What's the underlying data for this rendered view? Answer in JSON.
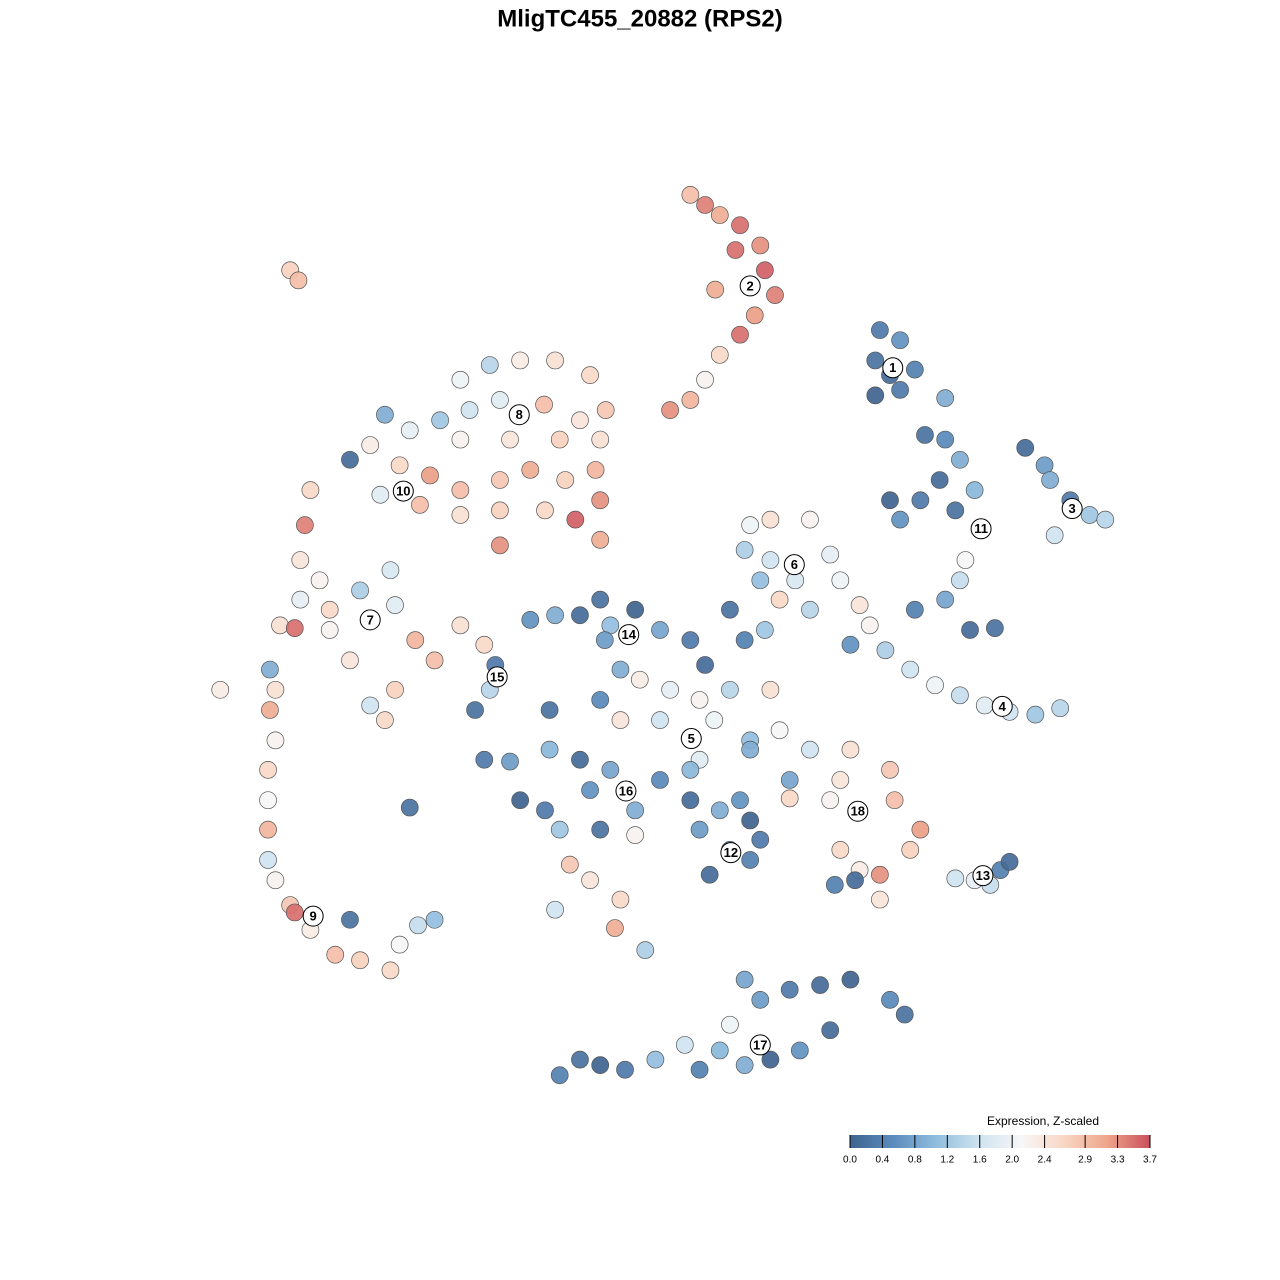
{
  "chart_data": {
    "type": "scatter",
    "title": "MligTC455_20882 (RPS2)",
    "xlim": [
      0,
      100
    ],
    "ylim": [
      0,
      100
    ],
    "x": [
      53.3,
      54.9,
      56.5,
      58.7,
      60.9,
      61.4,
      62.5,
      60.3,
      58.7,
      56.5,
      54.9,
      53.3,
      51.1,
      56.0,
      58.2,
      73.9,
      76.1,
      73.4,
      75.0,
      77.7,
      73.4,
      76.1,
      81.0,
      78.8,
      81.0,
      82.6,
      80.4,
      78.3,
      75.0,
      76.1,
      82.1,
      84.2,
      83.2,
      82.6,
      81.0,
      77.7,
      83.7,
      86.4,
      89.7,
      91.8,
      92.4,
      94.6,
      96.7,
      98.4,
      92.9,
      59.8,
      62.0,
      66.3,
      59.2,
      62.0,
      68.5,
      60.9,
      64.7,
      69.6,
      63.0,
      66.3,
      57.6,
      61.4,
      59.2,
      71.7,
      72.8,
      74.5,
      77.2,
      79.9,
      82.6,
      85.3,
      88.0,
      90.8,
      93.5,
      70.7,
      28.3,
      31.5,
      34.8,
      38.6,
      42.4,
      44.1,
      41.3,
      37.4,
      32.6,
      29.3,
      26.1,
      22.8,
      20.1,
      18.5,
      16.3,
      28.3,
      33.7,
      39.1,
      43.5,
      21.7,
      25.0,
      28.3,
      32.6,
      35.9,
      39.7,
      43.0,
      43.5,
      40.8,
      37.5,
      32.6,
      28.3,
      23.9,
      19.6,
      43.5,
      32.6,
      12.0,
      11.4,
      10.9,
      13.0,
      10.9,
      8.7,
      14.1,
      17.4,
      20.7,
      21.2,
      23.4,
      25.5,
      21.2,
      18.5,
      20.1,
      16.3,
      10.3,
      14.1,
      9.8,
      10.7,
      2.2,
      7.6,
      8.2,
      7.6,
      8.2,
      7.4,
      7.4,
      7.4,
      7.4,
      8.2,
      9.8,
      12.0,
      14.7,
      17.4,
      20.7,
      21.7,
      16.3,
      23.7,
      25.5,
      10.3,
      28.3,
      30.9,
      32.1,
      31.5,
      29.9,
      35.9,
      38.6,
      41.3,
      43.5,
      44.6,
      47.3,
      44.0,
      50.0,
      53.3,
      54.9,
      45.7,
      47.8,
      51.1,
      54.3,
      57.6,
      62.0,
      45.7,
      50.0,
      55.9,
      59.8,
      63.0,
      43.5,
      38.0,
      54.3,
      59.8,
      34.8,
      37.5,
      39.1,
      42.4,
      44.6,
      47.3,
      41.3,
      38.0,
      43.5,
      30.9,
      33.7,
      50.0,
      47.3,
      40.2,
      42.4,
      38.6,
      45.7,
      45.1,
      48.4,
      22.8,
      53.3,
      56.5,
      59.8,
      60.9,
      54.3,
      57.6,
      55.4,
      59.8,
      53.3,
      58.7,
      64.1,
      64.1,
      66.3,
      70.7,
      75.0,
      69.6,
      68.5,
      75.5,
      78.3,
      77.2,
      69.6,
      71.7,
      69.0,
      73.9,
      73.9,
      71.2,
      82.1,
      84.2,
      85.9,
      87.0,
      88.0,
      41.3,
      43.5,
      46.2,
      49.5,
      52.7,
      54.3,
      56.5,
      59.2,
      60.9,
      64.1,
      67.4,
      70.7,
      75.0,
      76.6,
      68.5,
      65.2,
      62.0,
      59.2,
      57.6,
      39.1
    ],
    "y": [
      97.3,
      96.2,
      95.1,
      94.0,
      91.8,
      89.1,
      86.4,
      84.2,
      82.1,
      79.9,
      77.2,
      75.0,
      73.9,
      87.0,
      91.3,
      82.6,
      81.5,
      79.3,
      77.7,
      78.3,
      75.5,
      76.1,
      75.2,
      71.2,
      70.7,
      68.5,
      66.3,
      64.1,
      64.1,
      62.0,
      63.0,
      65.2,
      57.6,
      55.4,
      53.3,
      52.2,
      50.0,
      50.2,
      69.8,
      67.9,
      66.3,
      64.1,
      62.5,
      62.0,
      60.3,
      61.4,
      62.0,
      62.0,
      58.7,
      57.6,
      58.2,
      55.4,
      55.4,
      55.4,
      53.3,
      52.2,
      52.2,
      50.0,
      48.9,
      52.7,
      50.5,
      47.8,
      45.7,
      44.0,
      42.9,
      41.8,
      41.1,
      40.8,
      41.5,
      48.4,
      77.2,
      78.8,
      79.3,
      79.3,
      77.7,
      73.9,
      72.8,
      74.5,
      75.0,
      73.9,
      72.8,
      71.7,
      73.4,
      70.1,
      68.5,
      70.7,
      70.7,
      70.7,
      70.7,
      67.9,
      66.8,
      65.2,
      66.3,
      67.4,
      66.3,
      67.4,
      64.1,
      62.0,
      63.0,
      63.0,
      62.5,
      63.6,
      64.7,
      59.8,
      59.2,
      65.2,
      61.4,
      57.6,
      55.4,
      53.3,
      50.5,
      52.2,
      54.3,
      56.5,
      52.7,
      48.9,
      46.7,
      43.5,
      41.8,
      40.2,
      46.7,
      50.2,
      50.0,
      89.1,
      88.0,
      43.5,
      45.7,
      43.5,
      41.3,
      38.0,
      34.8,
      31.5,
      28.3,
      25.0,
      22.8,
      20.1,
      17.4,
      14.7,
      14.1,
      13.0,
      15.8,
      18.5,
      17.9,
      18.5,
      19.3,
      50.5,
      48.4,
      46.2,
      43.5,
      41.3,
      51.1,
      51.6,
      51.6,
      53.3,
      50.5,
      52.2,
      48.9,
      50.0,
      48.9,
      46.2,
      45.7,
      44.6,
      43.5,
      42.4,
      43.5,
      43.5,
      40.2,
      40.2,
      40.2,
      38.0,
      39.1,
      42.4,
      41.3,
      35.9,
      37.0,
      31.5,
      30.4,
      28.3,
      32.6,
      34.8,
      30.4,
      35.9,
      37.0,
      28.3,
      35.9,
      35.7,
      33.7,
      27.7,
      24.5,
      22.8,
      19.6,
      20.7,
      17.6,
      15.2,
      30.7,
      31.5,
      30.4,
      29.3,
      27.2,
      28.3,
      26.1,
      23.4,
      25.0,
      34.8,
      31.5,
      33.7,
      31.7,
      37.0,
      37.0,
      34.8,
      33.7,
      31.5,
      31.5,
      28.3,
      26.1,
      26.1,
      23.9,
      22.3,
      23.4,
      20.7,
      22.8,
      23.0,
      22.8,
      22.3,
      23.9,
      24.8,
      3.3,
      2.7,
      2.2,
      3.3,
      4.9,
      2.2,
      4.3,
      2.7,
      9.8,
      10.9,
      11.4,
      12.0,
      9.8,
      8.2,
      6.5,
      4.3,
      3.3,
      12.0,
      7.1,
      1.6
    ],
    "values": [
      2.9,
      3.4,
      3.1,
      3.5,
      3.3,
      3.6,
      3.4,
      3.2,
      3.5,
      2.6,
      2.2,
      3.0,
      3.3,
      3.1,
      3.5,
      0.3,
      0.6,
      0.2,
      0.1,
      0.4,
      0.0,
      0.3,
      0.9,
      0.2,
      0.5,
      0.9,
      0.1,
      0.3,
      0.0,
      0.6,
      0.2,
      1.0,
      2.1,
      1.5,
      0.8,
      0.4,
      0.1,
      0.2,
      0.1,
      0.7,
      0.9,
      0.3,
      1.2,
      1.4,
      1.6,
      2.0,
      2.5,
      2.2,
      1.3,
      1.6,
      1.9,
      1.1,
      1.7,
      2.0,
      2.6,
      1.4,
      0.2,
      1.2,
      0.4,
      2.4,
      2.2,
      1.3,
      1.6,
      2.0,
      1.5,
      1.8,
      1.6,
      1.2,
      1.4,
      0.6,
      2.0,
      1.4,
      2.3,
      2.5,
      2.6,
      2.8,
      2.4,
      2.9,
      1.8,
      1.6,
      1.2,
      1.9,
      0.9,
      2.3,
      0.1,
      2.2,
      2.4,
      2.7,
      2.5,
      2.6,
      3.2,
      2.9,
      2.8,
      3.1,
      2.7,
      3.0,
      3.3,
      3.6,
      2.6,
      2.7,
      2.5,
      2.9,
      1.8,
      3.1,
      3.3,
      2.6,
      3.4,
      2.4,
      2.2,
      1.9,
      2.5,
      2.6,
      1.3,
      1.7,
      1.8,
      3.0,
      2.9,
      2.7,
      1.6,
      2.6,
      2.4,
      3.5,
      2.2,
      2.7,
      2.9,
      2.3,
      0.9,
      2.5,
      3.1,
      2.2,
      2.6,
      2.1,
      3.0,
      1.6,
      2.2,
      2.8,
      2.3,
      2.9,
      2.7,
      2.6,
      2.1,
      0.2,
      1.5,
      1.1,
      3.5,
      2.5,
      2.6,
      0.3,
      1.4,
      0.2,
      0.6,
      0.9,
      0.1,
      0.2,
      1.1,
      0.0,
      0.7,
      0.8,
      0.3,
      0.1,
      0.9,
      2.3,
      1.9,
      2.2,
      1.4,
      2.5,
      2.4,
      1.6,
      2.0,
      1.1,
      2.1,
      0.5,
      0.2,
      1.8,
      0.9,
      0.0,
      0.3,
      1.2,
      0.6,
      0.8,
      0.9,
      0.1,
      1.0,
      0.2,
      0.3,
      0.7,
      0.5,
      2.2,
      2.8,
      2.4,
      1.6,
      2.6,
      3.1,
      1.3,
      0.2,
      0.1,
      0.9,
      0.0,
      0.3,
      0.7,
      0.2,
      0.1,
      0.4,
      1.0,
      0.6,
      0.8,
      2.6,
      1.6,
      2.5,
      2.8,
      2.4,
      2.2,
      2.9,
      3.2,
      2.7,
      2.6,
      2.3,
      0.4,
      3.3,
      2.4,
      0.1,
      1.6,
      1.9,
      1.5,
      0.4,
      0.1,
      0.2,
      0.0,
      0.3,
      1.1,
      1.6,
      0.4,
      1.0,
      0.9,
      0.7,
      0.3,
      0.1,
      0.0,
      0.5,
      0.2,
      0.1,
      0.6,
      0.0,
      0.8,
      2.0,
      0.4
    ],
    "cluster_labels": {
      "labels": [
        "1",
        "2",
        "3",
        "4",
        "5",
        "6",
        "7",
        "8",
        "9",
        "10",
        "11",
        "12",
        "13",
        "14",
        "15",
        "16",
        "17",
        "18"
      ],
      "x": [
        75.3,
        59.8,
        94.8,
        87.2,
        53.4,
        64.6,
        18.5,
        34.7,
        12.3,
        22.1,
        84.9,
        57.7,
        85.1,
        46.6,
        32.3,
        46.3,
        60.9,
        71.5
      ],
      "y": [
        78.5,
        87.4,
        63.2,
        41.7,
        38.2,
        57.1,
        51.1,
        73.4,
        18.9,
        65.1,
        61.0,
        25.8,
        23.3,
        49.5,
        44.9,
        32.5,
        4.9,
        30.3
      ]
    },
    "colorbar": {
      "title": "Expression, Z-scaled",
      "clim": [
        0,
        3.7
      ],
      "colors": [
        "#3f638f",
        "#5b8bbc",
        "#8fbcdd",
        "#cfe3f0",
        "#f7f7f7",
        "#f9d6c4",
        "#eea58b",
        "#c94f5c"
      ],
      "ticks": [
        {
          "value": 0,
          "label": "0.0"
        },
        0.4,
        0.8,
        1.2,
        1.6,
        {
          "value": 2,
          "label": "2.0"
        },
        2.4,
        2.9,
        3.3,
        3.7
      ]
    }
  }
}
